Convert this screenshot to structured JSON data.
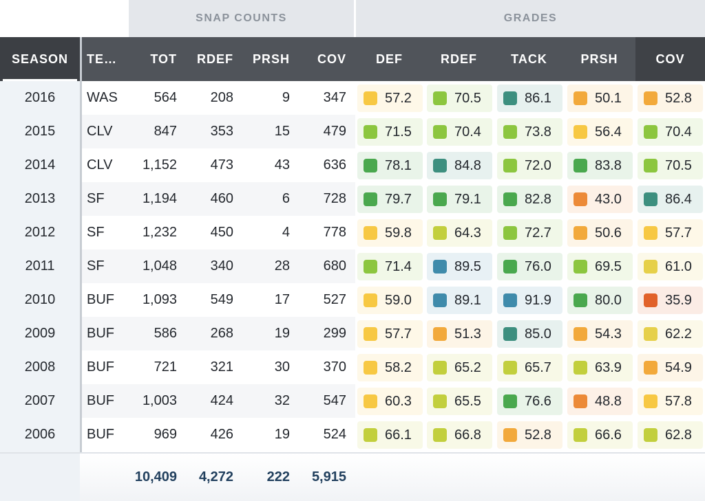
{
  "groups": {
    "snap": "SNAP COUNTS",
    "grades": "GRADES"
  },
  "headers": {
    "season": "SEASON",
    "team": "TE…",
    "tot": "TOT",
    "rdef": "RDEF",
    "prsh": "PRSH",
    "cov": "COV",
    "g_def": "DEF",
    "g_rdef": "RDEF",
    "g_tack": "TACK",
    "g_prsh": "PRSH",
    "g_cov": "COV"
  },
  "rows": [
    {
      "season": "2016",
      "team": "WAS",
      "tot": "564",
      "rdef": "208",
      "prsh": "9",
      "cov": "347",
      "grades": [
        "57.2",
        "70.5",
        "86.1",
        "50.1",
        "52.8"
      ]
    },
    {
      "season": "2015",
      "team": "CLV",
      "tot": "847",
      "rdef": "353",
      "prsh": "15",
      "cov": "479",
      "grades": [
        "71.5",
        "70.4",
        "73.8",
        "56.4",
        "70.4"
      ]
    },
    {
      "season": "2014",
      "team": "CLV",
      "tot": "1,152",
      "rdef": "473",
      "prsh": "43",
      "cov": "636",
      "grades": [
        "78.1",
        "84.8",
        "72.0",
        "83.8",
        "70.5"
      ]
    },
    {
      "season": "2013",
      "team": "SF",
      "tot": "1,194",
      "rdef": "460",
      "prsh": "6",
      "cov": "728",
      "grades": [
        "79.7",
        "79.1",
        "82.8",
        "43.0",
        "86.4"
      ]
    },
    {
      "season": "2012",
      "team": "SF",
      "tot": "1,232",
      "rdef": "450",
      "prsh": "4",
      "cov": "778",
      "grades": [
        "59.8",
        "64.3",
        "72.7",
        "50.6",
        "57.7"
      ]
    },
    {
      "season": "2011",
      "team": "SF",
      "tot": "1,048",
      "rdef": "340",
      "prsh": "28",
      "cov": "680",
      "grades": [
        "71.4",
        "89.5",
        "76.0",
        "69.5",
        "61.0"
      ]
    },
    {
      "season": "2010",
      "team": "BUF",
      "tot": "1,093",
      "rdef": "549",
      "prsh": "17",
      "cov": "527",
      "grades": [
        "59.0",
        "89.1",
        "91.9",
        "80.0",
        "35.9"
      ]
    },
    {
      "season": "2009",
      "team": "BUF",
      "tot": "586",
      "rdef": "268",
      "prsh": "19",
      "cov": "299",
      "grades": [
        "57.7",
        "51.3",
        "85.0",
        "54.3",
        "62.2"
      ]
    },
    {
      "season": "2008",
      "team": "BUF",
      "tot": "721",
      "rdef": "321",
      "prsh": "30",
      "cov": "370",
      "grades": [
        "58.2",
        "65.2",
        "65.7",
        "63.9",
        "54.9"
      ]
    },
    {
      "season": "2007",
      "team": "BUF",
      "tot": "1,003",
      "rdef": "424",
      "prsh": "32",
      "cov": "547",
      "grades": [
        "60.3",
        "65.5",
        "76.6",
        "48.8",
        "57.8"
      ]
    },
    {
      "season": "2006",
      "team": "BUF",
      "tot": "969",
      "rdef": "426",
      "prsh": "19",
      "cov": "524",
      "grades": [
        "66.1",
        "66.8",
        "52.8",
        "66.6",
        "62.8"
      ]
    }
  ],
  "totals": {
    "tot": "10,409",
    "rdef": "4,272",
    "prsh": "222",
    "cov": "5,915"
  },
  "grade_colors": {
    "red": "#e1622a",
    "orange_dark": "#ec8a38",
    "orange": "#f2a93b",
    "yellow": "#f7c843",
    "yellow_light": "#e6d04a",
    "yellow_green": "#c2cf3d",
    "green_light": "#8cc63f",
    "green": "#4aa84e",
    "teal": "#3d8f7f",
    "blue": "#3f8bab"
  }
}
